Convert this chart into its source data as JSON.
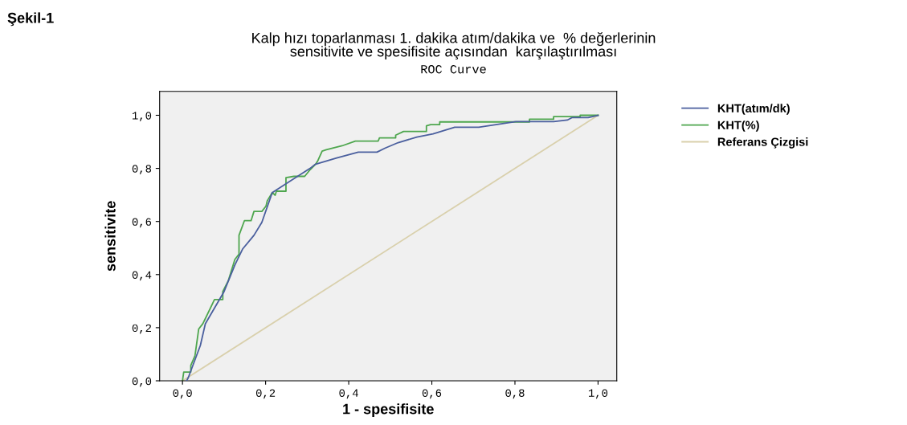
{
  "chart_data": {
    "type": "line",
    "title": "Kalp hızı toparlanması 1. dakika atım/dakika ve  % değerlerinin\nsensitivite ve spesifisite açısından  karşılaştırılması",
    "subtitle": "ROC Curve",
    "xlabel": "1 - spesifisite",
    "ylabel": "sensitivite",
    "annotations": [
      "Şekil-1"
    ],
    "xlim": [
      -0.055,
      1.045
    ],
    "ylim": [
      0,
      1.09
    ],
    "xticks": [
      {
        "value": 0,
        "label": "0,0"
      },
      {
        "value": 0.2,
        "label": "0,2"
      },
      {
        "value": 0.4,
        "label": "0,4"
      },
      {
        "value": 0.6,
        "label": "0,6"
      },
      {
        "value": 0.8,
        "label": "0,8"
      },
      {
        "value": 1,
        "label": "1,0"
      }
    ],
    "yticks": [
      {
        "value": 0,
        "label": "0,0"
      },
      {
        "value": 0.2,
        "label": "0,2"
      },
      {
        "value": 0.4,
        "label": "0,4"
      },
      {
        "value": 0.6,
        "label": "0,6"
      },
      {
        "value": 0.8,
        "label": "0,8"
      },
      {
        "value": 1,
        "label": "1,0"
      }
    ],
    "grid": false,
    "legend": "right",
    "marker": "none",
    "series": [
      {
        "name": "KHT(atım/dk)",
        "color": "#4a5f9e",
        "x": [
          0.01,
          0.014,
          0.043,
          0.055,
          0.1,
          0.126,
          0.145,
          0.172,
          0.191,
          0.216,
          0.255,
          0.307,
          0.319,
          0.371,
          0.423,
          0.468,
          0.487,
          0.519,
          0.564,
          0.603,
          0.655,
          0.713,
          0.802,
          0.893,
          0.926,
          0.937,
          0.976,
          1.0
        ],
        "values": [
          0,
          0.012,
          0.133,
          0.215,
          0.336,
          0.436,
          0.497,
          0.548,
          0.597,
          0.709,
          0.748,
          0.8,
          0.815,
          0.839,
          0.861,
          0.861,
          0.876,
          0.897,
          0.918,
          0.93,
          0.955,
          0.955,
          0.976,
          0.976,
          0.982,
          0.991,
          0.991,
          1.0
        ]
      },
      {
        "name": "KHT(%)",
        "color": "#4ea64e",
        "x": [
          0,
          0.003,
          0.02,
          0.02,
          0.03,
          0.039,
          0.049,
          0.077,
          0.097,
          0.097,
          0.11,
          0.126,
          0.136,
          0.136,
          0.149,
          0.165,
          0.172,
          0.191,
          0.201,
          0.204,
          0.216,
          0.223,
          0.226,
          0.249,
          0.249,
          0.268,
          0.294,
          0.307,
          0.32,
          0.326,
          0.336,
          0.346,
          0.384,
          0.416,
          0.471,
          0.474,
          0.513,
          0.513,
          0.532,
          0.587,
          0.587,
          0.597,
          0.619,
          0.619,
          0.835,
          0.835,
          0.893,
          0.893,
          0.957,
          0.957,
          1.0
        ],
        "values": [
          0,
          0.033,
          0.033,
          0.058,
          0.094,
          0.195,
          0.215,
          0.306,
          0.306,
          0.336,
          0.376,
          0.457,
          0.477,
          0.548,
          0.603,
          0.603,
          0.638,
          0.638,
          0.658,
          0.678,
          0.709,
          0.699,
          0.714,
          0.714,
          0.765,
          0.77,
          0.77,
          0.795,
          0.815,
          0.83,
          0.865,
          0.87,
          0.885,
          0.903,
          0.903,
          0.915,
          0.915,
          0.925,
          0.939,
          0.939,
          0.96,
          0.965,
          0.965,
          0.975,
          0.975,
          0.985,
          0.985,
          0.995,
          0.995,
          1.0,
          1.0
        ]
      },
      {
        "name": "Referans Çizgisi",
        "color": "#d9d0ac",
        "x": [
          0,
          1
        ],
        "values": [
          0,
          1
        ]
      }
    ]
  }
}
